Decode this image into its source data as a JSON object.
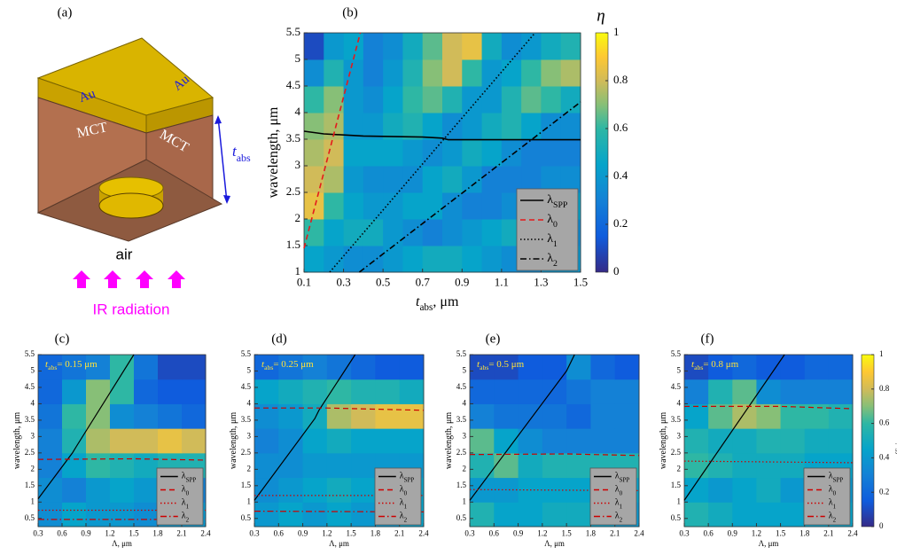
{
  "schematic": {
    "label": "(a)",
    "top_left": "Au",
    "top_right": "Au",
    "face_left": "MCT",
    "face_right": "MCT",
    "thickness": {
      "main": "t",
      "sub": "abs"
    },
    "medium": "air",
    "source": "IR radiation"
  },
  "chart_data": [
    {
      "type": "heatmap",
      "label": "(b)",
      "xlabel": {
        "main": "t",
        "sub": "abs",
        "rest": ", μm"
      },
      "ylabel": "wavelength, μm",
      "xlim": [
        0.1,
        1.5
      ],
      "ylim": [
        1,
        5.5
      ],
      "xticks": [
        0.1,
        0.3,
        0.5,
        0.7,
        0.9,
        1.1,
        1.3,
        1.5
      ],
      "yticks": [
        1,
        1.5,
        2,
        2.5,
        3,
        3.5,
        4,
        4.5,
        5,
        5.5
      ],
      "zlim": [
        0,
        1
      ],
      "colorbar": {
        "label": "η",
        "ticks": [
          0,
          0.2,
          0.4,
          0.6,
          0.8,
          1
        ]
      },
      "legend": "lower right",
      "z": [
        [
          0.45,
          0.4,
          0.35,
          0.35,
          0.4,
          0.45,
          0.5,
          0.5,
          0.45,
          0.4,
          0.35,
          0.35,
          0.4,
          0.4
        ],
        [
          0.6,
          0.45,
          0.5,
          0.5,
          0.4,
          0.35,
          0.3,
          0.35,
          0.4,
          0.45,
          0.5,
          0.45,
          0.4,
          0.35
        ],
        [
          0.85,
          0.6,
          0.45,
          0.4,
          0.4,
          0.45,
          0.45,
          0.35,
          0.3,
          0.3,
          0.35,
          0.4,
          0.45,
          0.45
        ],
        [
          0.8,
          0.75,
          0.4,
          0.35,
          0.35,
          0.35,
          0.45,
          0.5,
          0.4,
          0.3,
          0.3,
          0.3,
          0.35,
          0.35
        ],
        [
          0.75,
          0.8,
          0.45,
          0.45,
          0.45,
          0.4,
          0.35,
          0.4,
          0.5,
          0.45,
          0.35,
          0.3,
          0.3,
          0.3
        ],
        [
          0.7,
          0.75,
          0.4,
          0.4,
          0.5,
          0.55,
          0.45,
          0.35,
          0.4,
          0.5,
          0.55,
          0.45,
          0.35,
          0.35
        ],
        [
          0.6,
          0.7,
          0.4,
          0.35,
          0.45,
          0.6,
          0.65,
          0.55,
          0.4,
          0.4,
          0.55,
          0.65,
          0.6,
          0.5
        ],
        [
          0.35,
          0.55,
          0.4,
          0.3,
          0.4,
          0.55,
          0.7,
          0.8,
          0.6,
          0.4,
          0.45,
          0.6,
          0.7,
          0.75
        ],
        [
          0.1,
          0.4,
          0.45,
          0.3,
          0.35,
          0.5,
          0.65,
          0.8,
          0.85,
          0.5,
          0.35,
          0.4,
          0.5,
          0.55
        ]
      ],
      "series": [
        {
          "name": "λ",
          "sub": "SPP",
          "color": "#000000",
          "style": "solid",
          "x": [
            0.1,
            0.2,
            0.4,
            0.7,
            0.8,
            0.83,
            1.0,
            1.5
          ],
          "y": [
            3.65,
            3.6,
            3.56,
            3.54,
            3.52,
            3.49,
            3.49,
            3.49
          ]
        },
        {
          "name": "λ",
          "sub": "0",
          "color": "#e41a1c",
          "style": "dashed",
          "x": [
            0.1,
            0.385
          ],
          "y": [
            1.45,
            5.5
          ]
        },
        {
          "name": "λ",
          "sub": "1",
          "color": "#000000",
          "style": "dotted",
          "x": [
            0.23,
            1.27
          ],
          "y": [
            1,
            5.5
          ]
        },
        {
          "name": "λ",
          "sub": "2",
          "color": "#000000",
          "style": "dashdot",
          "x": [
            0.38,
            1.5
          ],
          "y": [
            1,
            4.2
          ]
        }
      ]
    },
    {
      "type": "heatmap",
      "label": "(c)",
      "annotation": {
        "main": "t",
        "sub": "abs",
        "rest": "= 0.15 μm"
      },
      "xlabel": "Λ, μm",
      "ylabel": "wavelength, μm",
      "xlim": [
        0.3,
        2.4
      ],
      "ylim": [
        0.25,
        5.5
      ],
      "xticks": [
        0.3,
        0.6,
        0.9,
        1.2,
        1.5,
        1.8,
        2.1,
        2.4
      ],
      "yticks": [
        0.5,
        1,
        1.5,
        2,
        2.5,
        3,
        3.5,
        4,
        4.5,
        5,
        5.5
      ],
      "zlim": [
        0,
        1
      ],
      "legend": "lower right",
      "z": [
        [
          0.35,
          0.45,
          0.4,
          0.4,
          0.35,
          0.4,
          0.4
        ],
        [
          0.35,
          0.3,
          0.4,
          0.45,
          0.4,
          0.35,
          0.3
        ],
        [
          0.3,
          0.45,
          0.6,
          0.55,
          0.5,
          0.55,
          0.55
        ],
        [
          0.3,
          0.55,
          0.75,
          0.8,
          0.8,
          0.85,
          0.8
        ],
        [
          0.25,
          0.6,
          0.7,
          0.35,
          0.3,
          0.25,
          0.2
        ],
        [
          0.2,
          0.4,
          0.7,
          0.6,
          0.2,
          0.15,
          0.15
        ],
        [
          0.2,
          0.25,
          0.3,
          0.6,
          0.25,
          0.1,
          0.1
        ]
      ],
      "series": [
        {
          "name": "λ",
          "sub": "SPP",
          "color": "#000000",
          "style": "solid",
          "x": [
            0.3,
            0.73,
            0.78,
            1.5
          ],
          "y": [
            1.1,
            2.5,
            2.7,
            5.5
          ]
        },
        {
          "name": "λ",
          "sub": "0",
          "color": "#cc0000",
          "style": "dashed",
          "x": [
            0.3,
            1.5,
            2.4
          ],
          "y": [
            2.3,
            2.32,
            2.28
          ]
        },
        {
          "name": "λ",
          "sub": "1",
          "color": "#cc0000",
          "style": "dotted",
          "x": [
            0.3,
            2.4
          ],
          "y": [
            0.75,
            0.75
          ]
        },
        {
          "name": "λ",
          "sub": "2",
          "color": "#cc0000",
          "style": "dashdot",
          "x": [
            0.3,
            2.4
          ],
          "y": [
            0.47,
            0.47
          ]
        }
      ]
    },
    {
      "type": "heatmap",
      "label": "(d)",
      "annotation": {
        "main": "t",
        "sub": "abs",
        "rest": "= 0.25 μm"
      },
      "xlabel": "Λ, μm",
      "ylabel": "wavelength, μm",
      "xlim": [
        0.3,
        2.4
      ],
      "ylim": [
        0.25,
        5.5
      ],
      "xticks": [
        0.3,
        0.6,
        0.9,
        1.2,
        1.5,
        1.8,
        2.1,
        2.4
      ],
      "yticks": [
        0.5,
        1,
        1.5,
        2,
        2.5,
        3,
        3.5,
        4,
        4.5,
        5,
        5.5
      ],
      "zlim": [
        0,
        1
      ],
      "legend": "lower right",
      "z": [
        [
          0.4,
          0.45,
          0.4,
          0.45,
          0.4,
          0.4,
          0.45
        ],
        [
          0.35,
          0.4,
          0.45,
          0.5,
          0.45,
          0.45,
          0.45
        ],
        [
          0.35,
          0.35,
          0.4,
          0.4,
          0.4,
          0.4,
          0.4
        ],
        [
          0.3,
          0.35,
          0.45,
          0.5,
          0.45,
          0.45,
          0.45
        ],
        [
          0.35,
          0.4,
          0.5,
          0.75,
          0.8,
          0.85,
          0.85
        ],
        [
          0.45,
          0.5,
          0.55,
          0.6,
          0.55,
          0.55,
          0.5
        ],
        [
          0.2,
          0.25,
          0.3,
          0.25,
          0.2,
          0.15,
          0.15
        ]
      ],
      "series": [
        {
          "name": "λ",
          "sub": "SPP",
          "color": "#000000",
          "style": "solid",
          "x": [
            0.3,
            1.05,
            1.1,
            1.55
          ],
          "y": [
            1.05,
            3.55,
            3.8,
            5.5
          ]
        },
        {
          "name": "λ",
          "sub": "0",
          "color": "#cc0000",
          "style": "dashed",
          "x": [
            0.3,
            1.2,
            2.4
          ],
          "y": [
            3.87,
            3.87,
            3.8
          ]
        },
        {
          "name": "λ",
          "sub": "1",
          "color": "#cc0000",
          "style": "dotted",
          "x": [
            0.3,
            2.4
          ],
          "y": [
            1.2,
            1.2
          ]
        },
        {
          "name": "λ",
          "sub": "2",
          "color": "#cc0000",
          "style": "dashdot",
          "x": [
            0.3,
            2.4
          ],
          "y": [
            0.72,
            0.7
          ]
        }
      ]
    },
    {
      "type": "heatmap",
      "label": "(e)",
      "annotation": {
        "main": "t",
        "sub": "abs",
        "rest": "= 0.5 μm"
      },
      "xlabel": "Λ, μm",
      "ylabel": "wavelength, μm",
      "xlim": [
        0.3,
        2.4
      ],
      "ylim": [
        0.25,
        5.5
      ],
      "xticks": [
        0.3,
        0.6,
        0.9,
        1.2,
        1.5,
        1.8,
        2.1,
        2.4
      ],
      "yticks": [
        0.5,
        1,
        1.5,
        2,
        2.5,
        3,
        3.5,
        4,
        4.5,
        5,
        5.5
      ],
      "zlim": [
        0,
        1
      ],
      "legend": "lower right",
      "z": [
        [
          0.55,
          0.45,
          0.45,
          0.5,
          0.5,
          0.45,
          0.4
        ],
        [
          0.4,
          0.4,
          0.45,
          0.45,
          0.45,
          0.45,
          0.45
        ],
        [
          0.55,
          0.65,
          0.5,
          0.55,
          0.55,
          0.55,
          0.55
        ],
        [
          0.65,
          0.45,
          0.35,
          0.3,
          0.3,
          0.3,
          0.3
        ],
        [
          0.3,
          0.25,
          0.25,
          0.25,
          0.2,
          0.3,
          0.3
        ],
        [
          0.2,
          0.2,
          0.2,
          0.2,
          0.25,
          0.3,
          0.3
        ],
        [
          0.1,
          0.1,
          0.15,
          0.15,
          0.35,
          0.2,
          0.15
        ]
      ],
      "series": [
        {
          "name": "λ",
          "sub": "SPP",
          "color": "#000000",
          "style": "solid",
          "x": [
            0.3,
            1.5,
            1.6
          ],
          "y": [
            1.05,
            5.0,
            5.5
          ]
        },
        {
          "name": "λ",
          "sub": "0",
          "color": "#cc0000",
          "style": "dashed",
          "x": [
            0.3,
            1.5,
            2.4
          ],
          "y": [
            2.45,
            2.47,
            2.42
          ]
        },
        {
          "name": "λ",
          "sub": "1",
          "color": "#cc0000",
          "style": "dotted",
          "x": [
            0.3,
            2.4
          ],
          "y": [
            1.38,
            1.35
          ]
        },
        {
          "name": "λ",
          "sub": "2",
          "color": "#cc0000",
          "style": "dashdot",
          "x": [],
          "y": []
        }
      ]
    },
    {
      "type": "heatmap",
      "label": "(f)",
      "annotation": {
        "main": "t",
        "sub": "abs",
        "rest": "= 0.8 μm"
      },
      "xlabel": "Λ, μm",
      "ylabel": "wavelength, μm",
      "xlim": [
        0.3,
        2.4
      ],
      "ylim": [
        0.25,
        5.5
      ],
      "xticks": [
        0.3,
        0.6,
        0.9,
        1.2,
        1.5,
        1.8,
        2.1,
        2.4
      ],
      "yticks": [
        0.5,
        1,
        1.5,
        2,
        2.5,
        3,
        3.5,
        4,
        4.5,
        5,
        5.5
      ],
      "zlim": [
        0,
        1
      ],
      "legend": "lower right",
      "colorbar": {
        "label": "efficiency η",
        "ticks": [
          0,
          0.2,
          0.4,
          0.6,
          0.8,
          1
        ]
      },
      "z": [
        [
          0.55,
          0.5,
          0.45,
          0.45,
          0.45,
          0.45,
          0.45
        ],
        [
          0.45,
          0.4,
          0.45,
          0.5,
          0.4,
          0.4,
          0.4
        ],
        [
          0.6,
          0.55,
          0.5,
          0.5,
          0.5,
          0.45,
          0.45
        ],
        [
          0.55,
          0.5,
          0.5,
          0.55,
          0.55,
          0.5,
          0.5
        ],
        [
          0.45,
          0.65,
          0.75,
          0.7,
          0.6,
          0.6,
          0.55
        ],
        [
          0.3,
          0.55,
          0.65,
          0.35,
          0.3,
          0.3,
          0.3
        ],
        [
          0.1,
          0.15,
          0.2,
          0.15,
          0.15,
          0.2,
          0.2
        ]
      ],
      "series": [
        {
          "name": "λ",
          "sub": "SPP",
          "color": "#000000",
          "style": "solid",
          "x": [
            0.3,
            1.55
          ],
          "y": [
            1.05,
            5.5
          ]
        },
        {
          "name": "λ",
          "sub": "0",
          "color": "#cc0000",
          "style": "dashed",
          "x": [
            0.3,
            1.5,
            2.4
          ],
          "y": [
            3.92,
            3.92,
            3.85
          ]
        },
        {
          "name": "λ",
          "sub": "1",
          "color": "#cc0000",
          "style": "dotted",
          "x": [
            0.3,
            2.4
          ],
          "y": [
            2.25,
            2.2
          ]
        },
        {
          "name": "λ",
          "sub": "2",
          "color": "#cc0000",
          "style": "dashdot",
          "x": [],
          "y": []
        }
      ]
    }
  ]
}
